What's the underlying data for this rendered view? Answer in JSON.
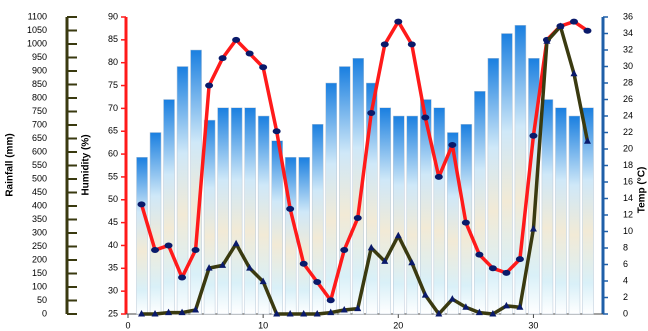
{
  "chart_data": {
    "type": "combo",
    "x_label_axis": "x",
    "x": [
      1,
      2,
      3,
      4,
      5,
      6,
      7,
      8,
      9,
      10,
      11,
      12,
      13,
      14,
      15,
      16,
      17,
      18,
      19,
      20,
      21,
      22,
      23,
      24,
      25,
      26,
      27,
      28,
      29,
      30,
      31,
      32,
      33,
      34
    ],
    "xlim": [
      0,
      35
    ],
    "xticks": [
      0,
      10,
      20,
      30
    ],
    "ylim": [
      25,
      90
    ],
    "yticks": [
      25,
      30,
      35,
      40,
      45,
      50,
      55,
      60,
      65,
      70,
      75,
      80,
      85,
      90
    ],
    "y_label": "Humidity (%)",
    "y_color": "#ff1a1a",
    "y2lim": [
      0,
      36
    ],
    "y2ticks": [
      0,
      2,
      4,
      6,
      8,
      10,
      12,
      14,
      16,
      18,
      20,
      22,
      24,
      26,
      28,
      30,
      32,
      34,
      36
    ],
    "y2_label": "Temp (°C)",
    "y2_color": "#1f5fa8",
    "y3lim": [
      0,
      1100
    ],
    "y3ticks": [
      0,
      50,
      100,
      150,
      200,
      250,
      300,
      350,
      400,
      450,
      500,
      550,
      600,
      650,
      700,
      750,
      800,
      850,
      900,
      950,
      1000,
      1050,
      1100
    ],
    "y3_label": "Rainfall (mm)",
    "y3_color": "#3a3a10",
    "series": [
      {
        "name": "Temp",
        "kind": "bar",
        "axis": "y2",
        "color": "#1a7fe0",
        "values": [
          19,
          22,
          26,
          30,
          32,
          23.5,
          25,
          25,
          25,
          24,
          21,
          19,
          19,
          23,
          28,
          30,
          31,
          28,
          25,
          24,
          24,
          26,
          25,
          22,
          23,
          27,
          31,
          34,
          35,
          31,
          26,
          25,
          24,
          25
        ]
      },
      {
        "name": "Humidity",
        "kind": "line",
        "axis": "y",
        "color": "#ff1a1a",
        "marker_color": "#0a1a6a",
        "values": [
          49,
          39,
          40,
          33,
          39,
          75,
          81,
          85,
          82,
          79,
          65,
          48,
          36,
          32,
          28,
          39,
          46,
          69,
          84,
          89,
          84,
          68,
          55,
          62,
          45,
          38,
          35,
          34,
          37,
          64,
          85,
          88,
          89,
          87
        ]
      },
      {
        "name": "Rainfall",
        "kind": "line",
        "axis": "y3",
        "color": "#3a3a10",
        "marker_color": "#0a1a6a",
        "values": [
          0,
          0,
          5,
          5,
          15,
          170,
          180,
          260,
          170,
          120,
          0,
          0,
          0,
          0,
          5,
          15,
          20,
          245,
          195,
          290,
          190,
          70,
          0,
          55,
          25,
          5,
          0,
          30,
          25,
          315,
          1010,
          1065,
          890,
          640
        ]
      }
    ]
  }
}
